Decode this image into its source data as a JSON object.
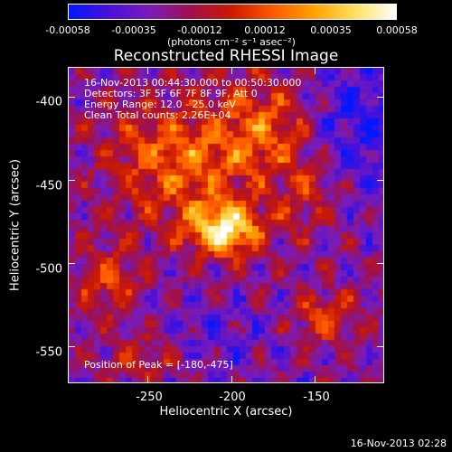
{
  "colorbar": {
    "tick_labels": [
      "-0.00058",
      "-0.00035",
      "-0.00012",
      "0.00012",
      "0.00035",
      "0.00058"
    ],
    "units": "(photons cm⁻² s⁻¹ asec⁻²)",
    "colors": [
      "#0018ff",
      "#4a10d8",
      "#7a1cb8",
      "#a0104a",
      "#cc1a00",
      "#ff5a00",
      "#ffa200",
      "#ffe060",
      "#ffffff"
    ]
  },
  "title": "Reconstructed RHESSI Image",
  "info": {
    "time_range": "16-Nov-2013 00:44:30.000 to 00:50:30.000",
    "detectors": "Detectors: 3F 5F 6F 7F 8F 9F, Att 0",
    "energy": "Energy Range: 12.0 - 25.0 keV",
    "clean": "Clean     Total counts: 2.26E+04",
    "peak": "Position of Peak = [-180,-475]"
  },
  "chart_data": {
    "type": "heatmap",
    "title": "Reconstructed RHESSI Image",
    "xlabel": "Heliocentric X (arcsec)",
    "ylabel": "Heliocentric Y (arcsec)",
    "xlim": [
      -298,
      -108
    ],
    "ylim": [
      -572,
      -382
    ],
    "x_ticks": [
      "-250",
      "-200",
      "-150"
    ],
    "y_ticks": [
      "-400",
      "-450",
      "-500",
      "-550"
    ],
    "peak": [
      -180,
      -475
    ],
    "colorbar_range": [
      -0.00058,
      0.00058
    ]
  },
  "axes": {
    "x_tick_values": [
      -250,
      -200,
      -150
    ],
    "y_tick_values": [
      -400,
      -450,
      -500,
      -550
    ]
  },
  "timestamp": "16-Nov-2013 02:28"
}
